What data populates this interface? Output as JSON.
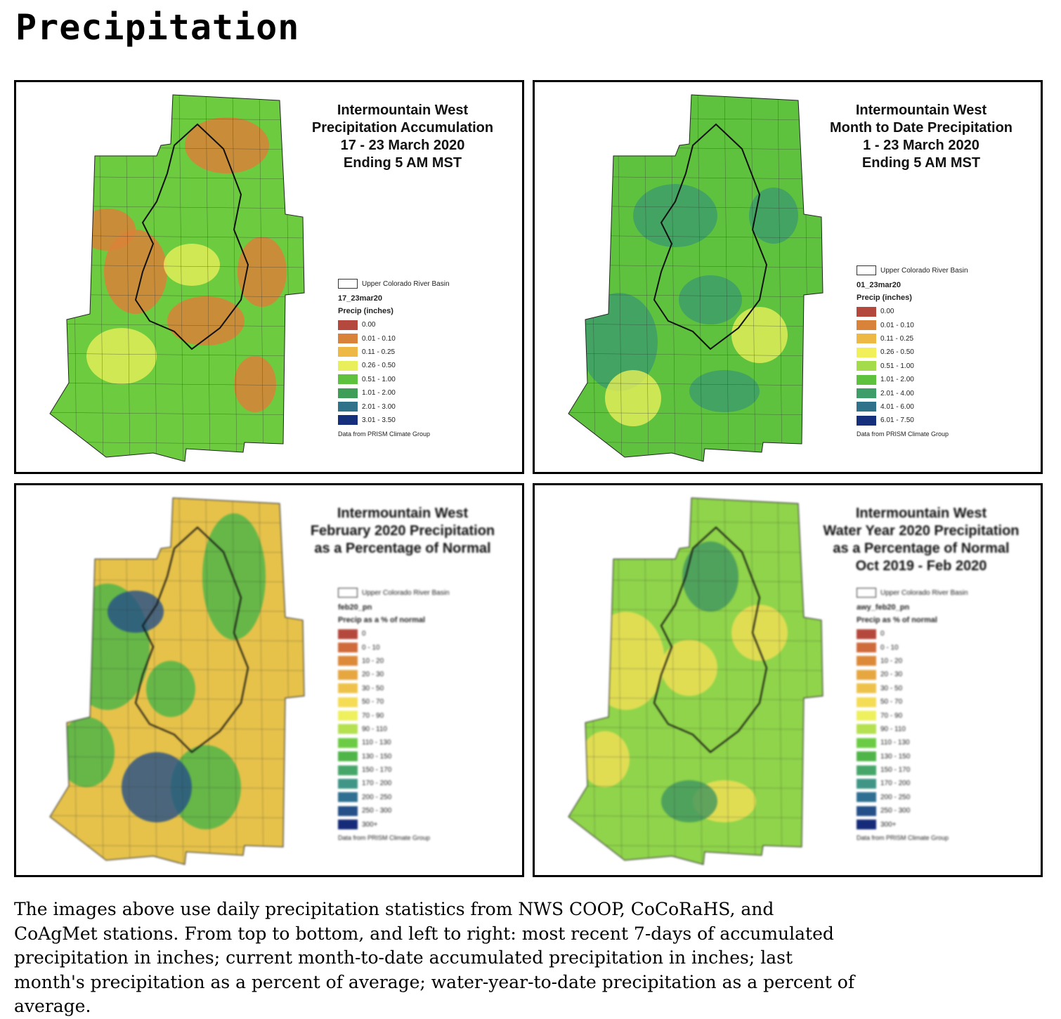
{
  "page": {
    "title": "Precipitation"
  },
  "panels": [
    {
      "title_lines": [
        "Intermountain West",
        "Precipitation Accumulation",
        "17 - 23 March 2020",
        "Ending 5 AM MST"
      ],
      "legend": {
        "basin_label": "Upper Colorado River Basin",
        "layer": "17_23mar20",
        "heading": "Precip (inches)",
        "items": [
          {
            "label": "0.00",
            "color": "#b5483c"
          },
          {
            "label": "0.01 - 0.10",
            "color": "#d9823a"
          },
          {
            "label": "0.11 - 0.25",
            "color": "#edb944"
          },
          {
            "label": "0.26 - 0.50",
            "color": "#e8ef5a"
          },
          {
            "label": "0.51 - 1.00",
            "color": "#5fc23f"
          },
          {
            "label": "1.01 - 2.00",
            "color": "#3e9e57"
          },
          {
            "label": "2.01 - 3.00",
            "color": "#2f7289"
          },
          {
            "label": "3.01 - 3.50",
            "color": "#152f7c"
          }
        ]
      },
      "source": "Data from PRISM Climate Group",
      "map_colors": [
        "#6ccb3f",
        "#d9823a",
        "#e8ef5a"
      ]
    },
    {
      "title_lines": [
        "Intermountain West",
        "Month to Date Precipitation",
        "1 - 23 March 2020",
        "Ending 5 AM MST"
      ],
      "legend": {
        "basin_label": "Upper Colorado River Basin",
        "layer": "01_23mar20",
        "heading": "Precip (inches)",
        "items": [
          {
            "label": "0.00",
            "color": "#b5483c"
          },
          {
            "label": "0.01 - 0.10",
            "color": "#d9823a"
          },
          {
            "label": "0.11 - 0.25",
            "color": "#edb944"
          },
          {
            "label": "0.26 - 0.50",
            "color": "#f1ef5a"
          },
          {
            "label": "0.51 - 1.00",
            "color": "#a4db4a"
          },
          {
            "label": "1.01 - 2.00",
            "color": "#5fc23f"
          },
          {
            "label": "2.01 - 4.00",
            "color": "#3e9e6a"
          },
          {
            "label": "4.01 - 6.00",
            "color": "#2f7289"
          },
          {
            "label": "6.01 - 7.50",
            "color": "#152f7c"
          }
        ]
      },
      "source": "Data from PRISM Climate Group",
      "map_colors": [
        "#5fc23f",
        "#3e9e6a",
        "#e8ef5a"
      ]
    },
    {
      "title_lines": [
        "Intermountain West",
        "February 2020 Precipitation",
        "as a Percentage of Normal"
      ],
      "legend": {
        "basin_label": "Upper Colorado River Basin",
        "layer": "feb20_pn",
        "heading": "Precip as a % of normal",
        "items": [
          {
            "label": "0",
            "color": "#b5483c"
          },
          {
            "label": "0 - 10",
            "color": "#cf6a3a"
          },
          {
            "label": "10 - 20",
            "color": "#dc8a3a"
          },
          {
            "label": "20 - 30",
            "color": "#e6a640"
          },
          {
            "label": "30 - 50",
            "color": "#eec24a"
          },
          {
            "label": "50 - 70",
            "color": "#f4dc55"
          },
          {
            "label": "70 - 90",
            "color": "#eef05e"
          },
          {
            "label": "90 - 110",
            "color": "#b5e050"
          },
          {
            "label": "110 - 130",
            "color": "#6ccb44"
          },
          {
            "label": "130 - 150",
            "color": "#4fb548"
          },
          {
            "label": "150 - 170",
            "color": "#46a66a"
          },
          {
            "label": "170 - 200",
            "color": "#3f9586"
          },
          {
            "label": "200 - 250",
            "color": "#2f6f92"
          },
          {
            "label": "250 - 300",
            "color": "#244f88"
          },
          {
            "label": "300+",
            "color": "#152a78"
          }
        ]
      },
      "source": "Data from PRISM Climate Group",
      "map_colors": [
        "#e6c24a",
        "#4fb548",
        "#244f88"
      ]
    },
    {
      "title_lines": [
        "Intermountain West",
        "Water Year 2020 Precipitation",
        "as a Percentage of Normal",
        "Oct 2019 - Feb 2020"
      ],
      "legend": {
        "basin_label": "Upper Colorado River Basin",
        "layer": "awy_feb20_pn",
        "heading": "Precip as % of normal",
        "items": [
          {
            "label": "0",
            "color": "#b5483c"
          },
          {
            "label": "0 - 10",
            "color": "#cf6a3a"
          },
          {
            "label": "10 - 20",
            "color": "#dc8a3a"
          },
          {
            "label": "20 - 30",
            "color": "#e6a640"
          },
          {
            "label": "30 - 50",
            "color": "#eec24a"
          },
          {
            "label": "50 - 70",
            "color": "#f4dc55"
          },
          {
            "label": "70 - 90",
            "color": "#eef05e"
          },
          {
            "label": "90 - 110",
            "color": "#b5e050"
          },
          {
            "label": "110 - 130",
            "color": "#6ccb44"
          },
          {
            "label": "130 - 150",
            "color": "#4fb548"
          },
          {
            "label": "150 - 170",
            "color": "#46a66a"
          },
          {
            "label": "170 - 200",
            "color": "#3f9586"
          },
          {
            "label": "200 - 250",
            "color": "#2f6f92"
          },
          {
            "label": "250 - 300",
            "color": "#244f88"
          },
          {
            "label": "300+",
            "color": "#152a78"
          }
        ]
      },
      "source": "Data from PRISM Climate Group",
      "map_colors": [
        "#8fd44a",
        "#eede55",
        "#3f9560"
      ]
    }
  ],
  "caption": "The images above use daily precipitation statistics from NWS COOP, CoCoRaHS, and CoAgMet stations. From top to bottom, and left to right: most recent 7-days of accumulated precipitation in inches; current month-to-date accumulated precipitation in inches; last month's precipitation as a percent of average; water-year-to-date precipitation as a percent of average."
}
